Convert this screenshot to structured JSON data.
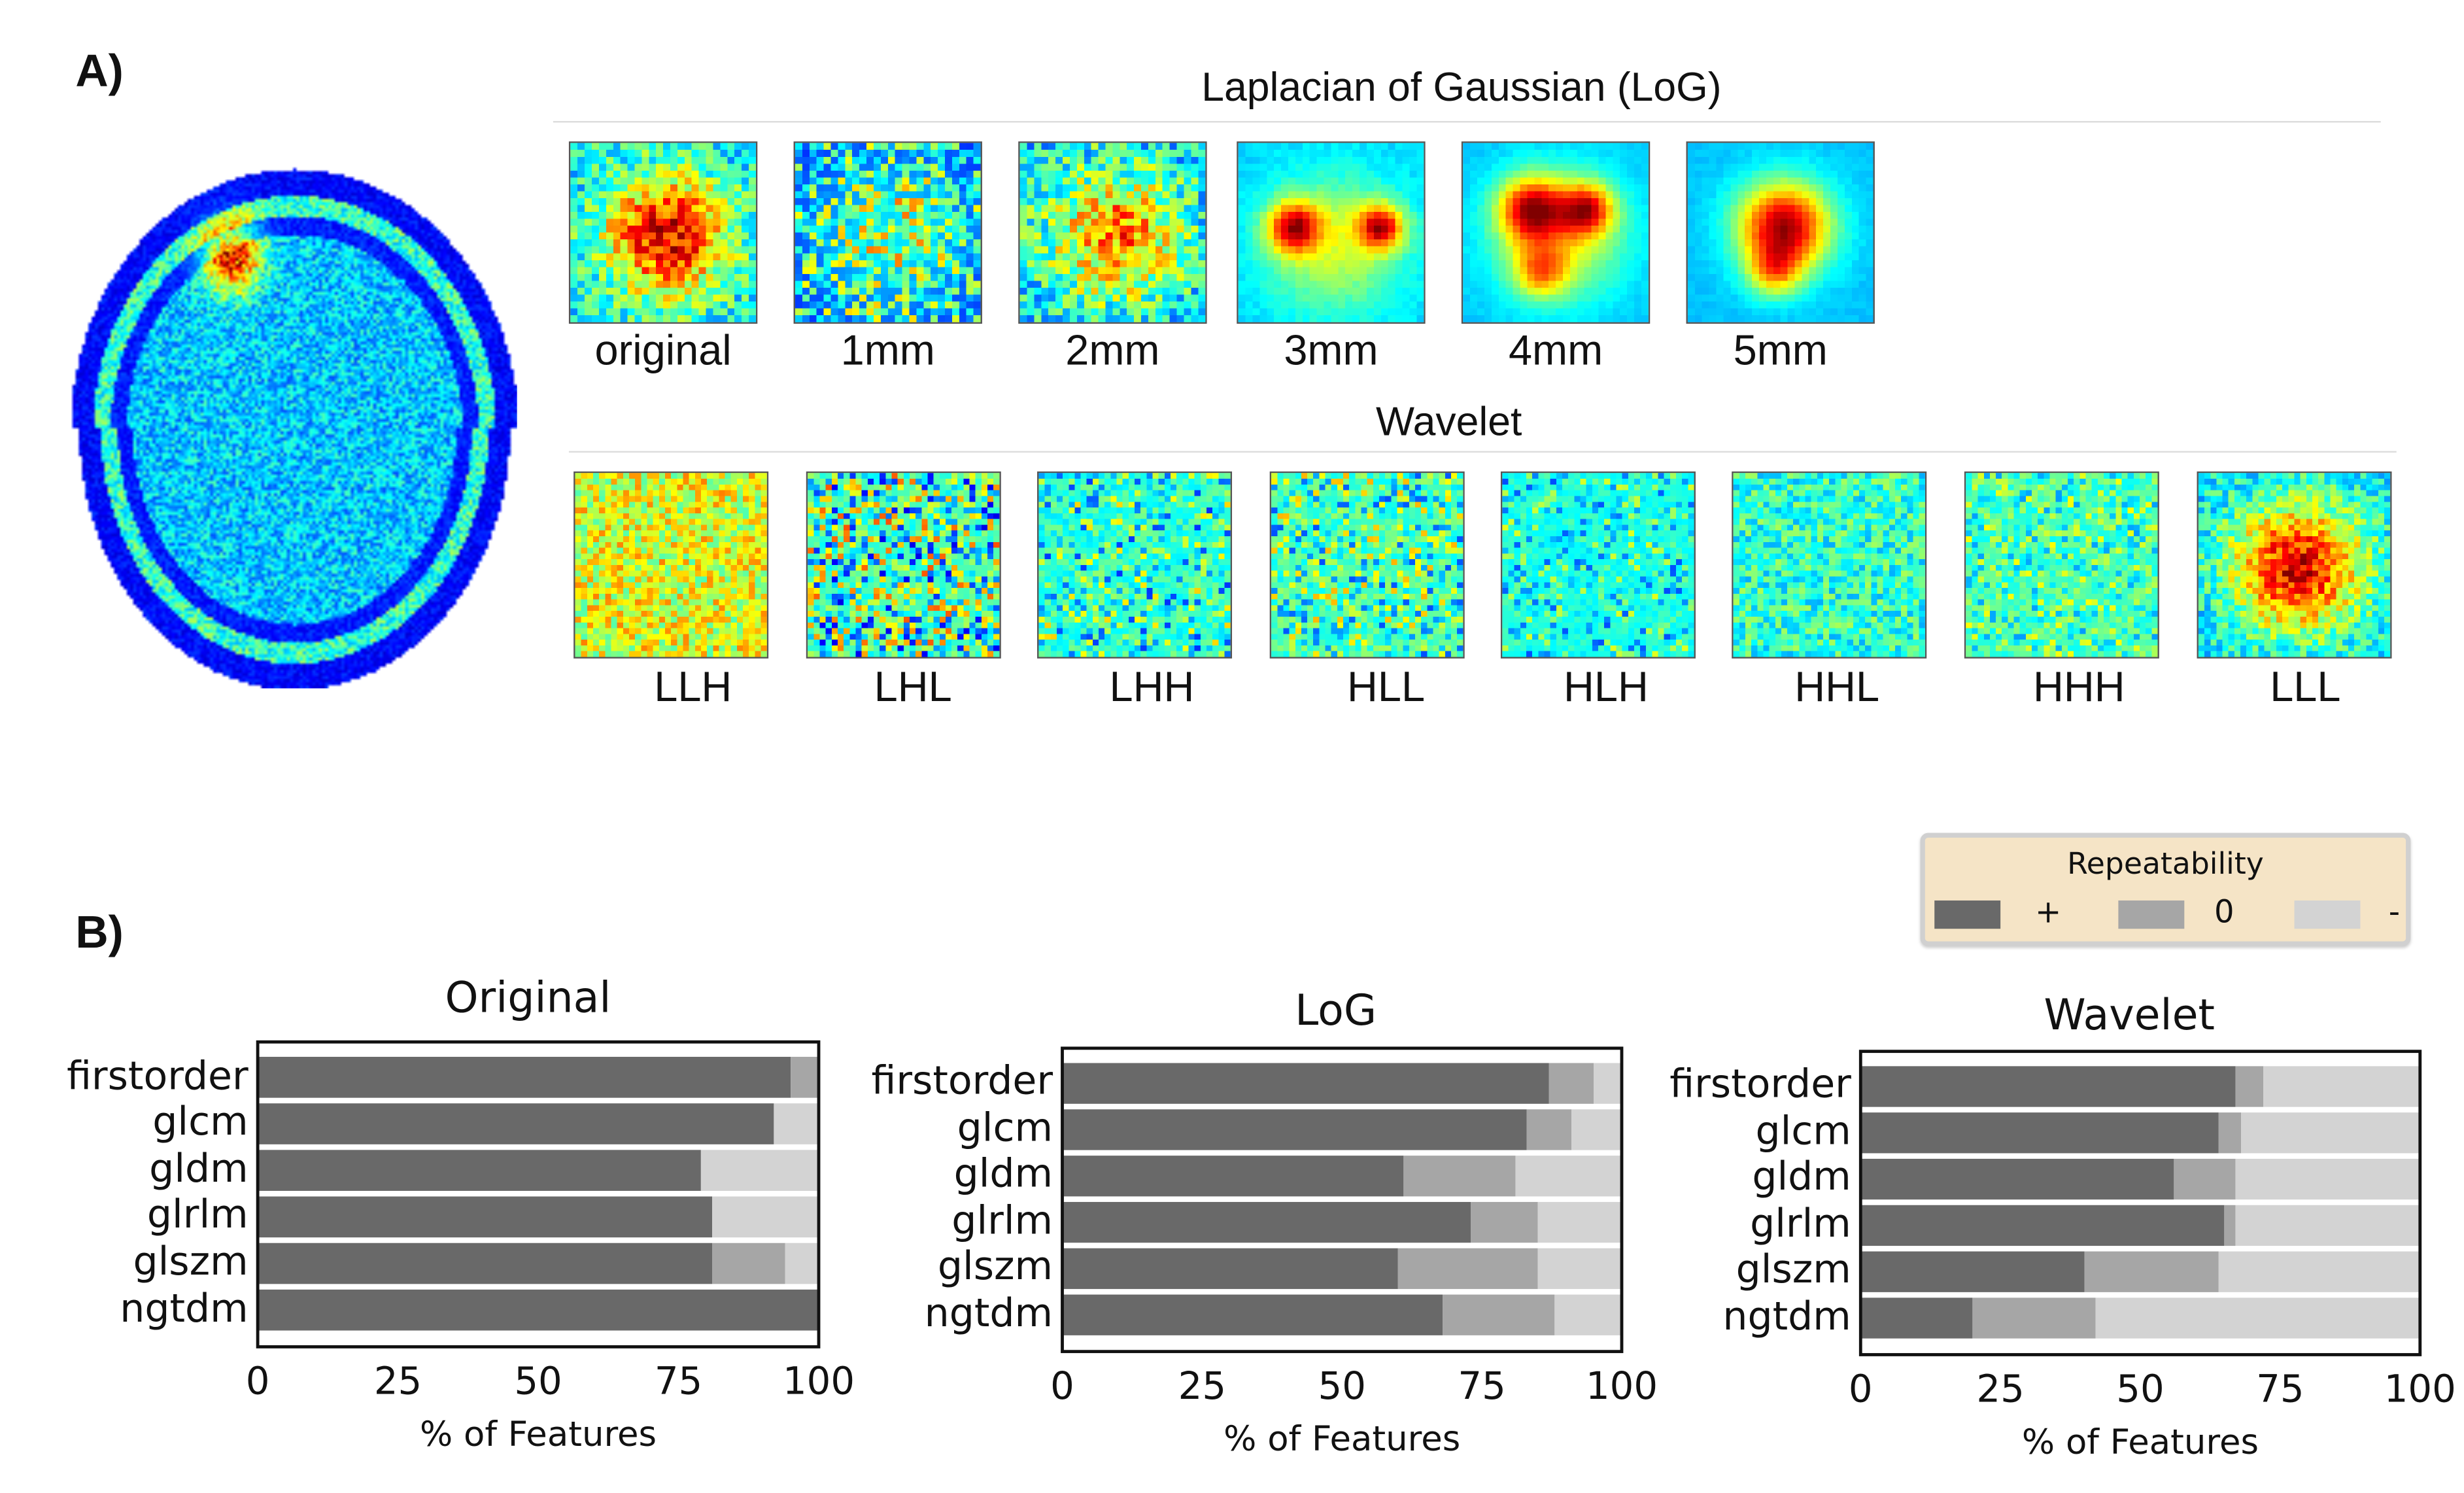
{
  "panel_a": {
    "label": "A)",
    "log_title": "Laplacian of Gaussian (LoG)",
    "log_labels": [
      "original",
      "1mm",
      "2mm",
      "3mm",
      "4mm",
      "5mm"
    ],
    "wavelet_title": "Wavelet",
    "wavelet_labels": [
      "LLH",
      "LHL",
      "LHH",
      "HLL",
      "HLH",
      "HHL",
      "HHH",
      "LLL"
    ]
  },
  "panel_b": {
    "label": "B)",
    "legend": {
      "title": "Repeatability",
      "items": [
        {
          "label": "+",
          "color": "#696969"
        },
        {
          "label": "0",
          "color": "#a6a6a6"
        },
        {
          "label": "-",
          "color": "#d3d3d3"
        }
      ]
    }
  },
  "chart_data": [
    {
      "type": "bar",
      "orientation": "horizontal-stacked",
      "title": "Original",
      "categories": [
        "firstorder",
        "glcm",
        "gldm",
        "glrlm",
        "glszm",
        "ngtdm"
      ],
      "series": [
        {
          "name": "+",
          "values": [
            95,
            92,
            79,
            81,
            81,
            100
          ]
        },
        {
          "name": "0",
          "values": [
            5,
            0,
            0,
            0,
            13,
            0
          ]
        },
        {
          "name": "-",
          "values": [
            0,
            8,
            21,
            19,
            6,
            0
          ]
        }
      ],
      "xlabel": "% of Features",
      "ylabel": "",
      "xlim": [
        0,
        100
      ],
      "xticks": [
        "0",
        "25",
        "50",
        "75",
        "100"
      ]
    },
    {
      "type": "bar",
      "orientation": "horizontal-stacked",
      "title": "LoG",
      "categories": [
        "firstorder",
        "glcm",
        "gldm",
        "glrlm",
        "glszm",
        "ngtdm"
      ],
      "series": [
        {
          "name": "+",
          "values": [
            87,
            83,
            61,
            73,
            60,
            68
          ]
        },
        {
          "name": "0",
          "values": [
            8,
            8,
            20,
            12,
            25,
            20
          ]
        },
        {
          "name": "-",
          "values": [
            5,
            9,
            19,
            15,
            15,
            12
          ]
        }
      ],
      "xlabel": "% of Features",
      "ylabel": "",
      "xlim": [
        0,
        100
      ],
      "xticks": [
        "0",
        "25",
        "50",
        "75",
        "100"
      ]
    },
    {
      "type": "bar",
      "orientation": "horizontal-stacked",
      "title": "Wavelet",
      "categories": [
        "firstorder",
        "glcm",
        "gldm",
        "glrlm",
        "glszm",
        "ngtdm"
      ],
      "series": [
        {
          "name": "+",
          "values": [
            67,
            64,
            56,
            65,
            40,
            20
          ]
        },
        {
          "name": "0",
          "values": [
            5,
            4,
            11,
            2,
            24,
            22
          ]
        },
        {
          "name": "-",
          "values": [
            28,
            32,
            33,
            33,
            36,
            58
          ]
        }
      ],
      "xlabel": "% of Features",
      "ylabel": "",
      "xlim": [
        0,
        100
      ],
      "xticks": [
        "0",
        "25",
        "50",
        "75",
        "100"
      ]
    }
  ]
}
